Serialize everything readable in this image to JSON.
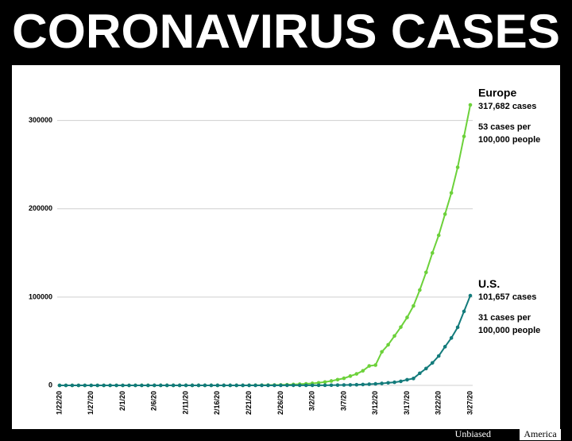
{
  "chart_data": {
    "type": "line",
    "title": "CORONAVIRUS CASES",
    "categories": [
      "1/22/20",
      null,
      null,
      null,
      null,
      "1/27/20",
      null,
      null,
      null,
      null,
      "2/1/20",
      null,
      null,
      null,
      null,
      "2/6/20",
      null,
      null,
      null,
      null,
      "2/11/20",
      null,
      null,
      null,
      null,
      "2/16/20",
      null,
      null,
      null,
      null,
      "2/21/20",
      null,
      null,
      null,
      null,
      "2/26/20",
      null,
      null,
      null,
      null,
      "3/2/20",
      null,
      null,
      null,
      null,
      "3/7/20",
      null,
      null,
      null,
      null,
      "3/12/20",
      null,
      null,
      null,
      null,
      "3/17/20",
      null,
      null,
      null,
      null,
      "3/22/20",
      null,
      null,
      null,
      null,
      "3/27/20"
    ],
    "series": [
      {
        "name": "Europe",
        "color": "#6cd13a",
        "notes": [
          "317,682 cases",
          "53 cases per",
          "100,000 people"
        ],
        "values": [
          0,
          0,
          0,
          0,
          2,
          3,
          4,
          4,
          5,
          7,
          10,
          10,
          15,
          20,
          23,
          29,
          30,
          32,
          34,
          38,
          40,
          42,
          45,
          45,
          45,
          45,
          45,
          45,
          45,
          50,
          70,
          150,
          220,
          300,
          400,
          550,
          750,
          1050,
          1400,
          1800,
          2300,
          2900,
          3800,
          5000,
          6500,
          8000,
          10500,
          13000,
          16500,
          22000,
          23000,
          38000,
          46000,
          56000,
          66000,
          77000,
          90000,
          108000,
          128000,
          150000,
          170000,
          194000,
          218000,
          247000,
          282000,
          317682
        ]
      },
      {
        "name": "U.S.",
        "color": "#137b7b",
        "notes": [
          "101,657 cases",
          "31 cases per",
          "100,000 people"
        ],
        "values": [
          1,
          1,
          2,
          2,
          5,
          5,
          5,
          5,
          5,
          6,
          8,
          8,
          11,
          11,
          11,
          12,
          12,
          12,
          12,
          12,
          13,
          13,
          14,
          14,
          14,
          14,
          14,
          14,
          14,
          14,
          14,
          35,
          35,
          35,
          53,
          57,
          60,
          60,
          62,
          75,
          100,
          120,
          160,
          220,
          320,
          440,
          540,
          700,
          1000,
          1300,
          1700,
          2200,
          2900,
          3500,
          4600,
          6400,
          7800,
          13700,
          19100,
          25500,
          33300,
          43800,
          53700,
          65800,
          83800,
          101657
        ]
      }
    ],
    "ylim": [
      0,
      360000
    ],
    "yticks": [
      0,
      100000,
      200000,
      300000
    ],
    "grid": true
  },
  "footer": {
    "brand_1": "Unbiased",
    "brand_2": "America"
  }
}
